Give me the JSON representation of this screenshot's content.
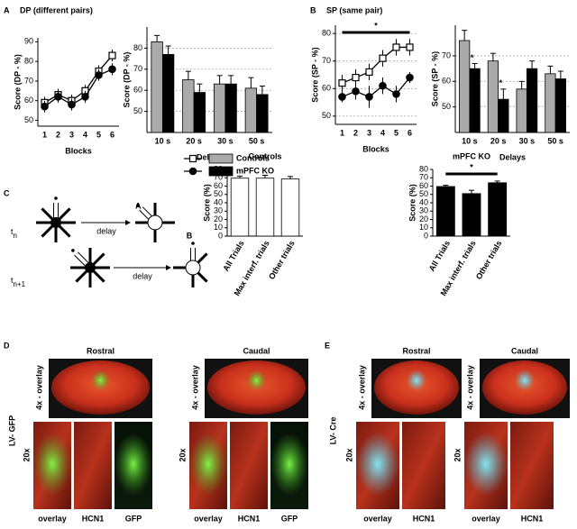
{
  "panel_labels": [
    "A",
    "B",
    "C",
    "D",
    "E"
  ],
  "panel_titles": [
    "DP (different pairs)",
    "SP (same pair)"
  ],
  "chart_data": [
    {
      "type": "line",
      "x_label": "Blocks",
      "y_label": "Score (DP - %)",
      "categories": [
        "1",
        "2",
        "3",
        "4",
        "5",
        "6"
      ],
      "ylim": [
        47,
        92
      ],
      "yticks": [
        50,
        60,
        70,
        80,
        90
      ],
      "grid": false,
      "series": [
        {
          "name": "Controls",
          "color": "#ffffff",
          "marker": "square",
          "values": [
            59,
            63,
            60,
            65,
            75,
            83
          ],
          "errors": [
            3,
            3,
            3,
            3,
            3,
            3
          ]
        },
        {
          "name": "mPFC KO",
          "color": "#000000",
          "marker": "circle",
          "values": [
            57,
            62,
            58,
            62,
            73,
            76
          ],
          "errors": [
            3,
            3,
            3,
            3,
            3,
            3
          ]
        }
      ]
    },
    {
      "type": "bar",
      "x_label": "Delays",
      "y_label": "Score (DP - %)",
      "categories": [
        "10 s",
        "20 s",
        "30 s",
        "50 s"
      ],
      "ylim": [
        40,
        90
      ],
      "yticks": [
        50,
        60,
        70,
        80
      ],
      "grid": true,
      "series": [
        {
          "name": "Controls",
          "color": "#aaaaaa",
          "values": [
            83,
            65,
            63,
            61
          ],
          "errors": [
            3,
            4,
            4,
            5
          ]
        },
        {
          "name": "mPFC KO",
          "color": "#000000",
          "values": [
            77,
            59,
            63,
            58
          ],
          "errors": [
            4,
            4,
            4,
            4
          ]
        }
      ]
    },
    {
      "type": "line",
      "x_label": "Blocks",
      "y_label": "Score (SP - %)",
      "categories": [
        "1",
        "2",
        "3",
        "4",
        "5",
        "6"
      ],
      "ylim": [
        47,
        83
      ],
      "yticks": [
        50,
        60,
        70,
        80
      ],
      "grid": true,
      "annotations": [
        {
          "text": "*"
        }
      ],
      "series": [
        {
          "name": "Controls",
          "color": "#ffffff",
          "marker": "square",
          "values": [
            62,
            64,
            66,
            71,
            75,
            75
          ],
          "errors": [
            3,
            3,
            3,
            3,
            3,
            3
          ]
        },
        {
          "name": "mPFC KO",
          "color": "#000000",
          "marker": "circle",
          "values": [
            57,
            59,
            57,
            61,
            58,
            64
          ],
          "errors": [
            2,
            3,
            4,
            3,
            3,
            2
          ]
        }
      ]
    },
    {
      "type": "bar",
      "x_label": "Delays",
      "y_label": "Score (SP - %)",
      "categories": [
        "10 s",
        "20 s",
        "30 s",
        "50 s"
      ],
      "ylim": [
        40,
        82
      ],
      "yticks": [
        50,
        60,
        70
      ],
      "grid": true,
      "annotations": [
        {
          "text": "*"
        },
        {
          "text": "*"
        }
      ],
      "series": [
        {
          "name": "Controls",
          "color": "#aaaaaa",
          "values": [
            76,
            68,
            57,
            63
          ],
          "errors": [
            4,
            3,
            3,
            3
          ]
        },
        {
          "name": "mPFC KO",
          "color": "#000000",
          "values": [
            65,
            53,
            65,
            61
          ],
          "errors": [
            2,
            4,
            3,
            3
          ]
        }
      ]
    },
    {
      "type": "bar",
      "title": "Controls",
      "y_label": "Score (%)",
      "categories": [
        "All Trials",
        "Max interf. trials",
        "Other trials"
      ],
      "ylim": [
        0,
        80
      ],
      "yticks": [
        0,
        10,
        20,
        30,
        40,
        50,
        60,
        70,
        80
      ],
      "grid": false,
      "color": "#ffffff",
      "values": [
        69.5,
        69.5,
        68.5
      ],
      "errors": [
        2.5,
        3.5,
        3
      ]
    },
    {
      "type": "bar",
      "title": "mPFC KO",
      "y_label": "Score (%)",
      "categories": [
        "All Trials",
        "Max interf. trials",
        "Other trials"
      ],
      "ylim": [
        0,
        80
      ],
      "yticks": [
        0,
        10,
        20,
        30,
        40,
        50,
        60,
        70,
        80
      ],
      "grid": false,
      "annotations": [
        {
          "text": "*"
        }
      ],
      "color": "#000000",
      "values": [
        59.5,
        51,
        64
      ],
      "errors": [
        1.5,
        4,
        2
      ]
    }
  ],
  "diagram": {
    "rows": [
      {
        "time": "t",
        "index": "n",
        "delay": "delay",
        "arm": "A"
      },
      {
        "time": "t",
        "index": "n+1",
        "delay": "delay",
        "arm": "B"
      }
    ]
  },
  "histology": [
    {
      "construct": "LV- GFP",
      "sections": [
        {
          "title": "Rostral",
          "low_label": "4x - overlay",
          "high_label": "20x",
          "channels": [
            "overlay",
            "HCN1",
            "GFP"
          ]
        },
        {
          "title": "Caudal",
          "low_label": "4x - overlay",
          "high_label": "20x",
          "channels": [
            "overlay",
            "HCN1",
            "GFP"
          ]
        }
      ]
    },
    {
      "construct": "LV- Cre",
      "sections": [
        {
          "title": "Rostral",
          "low_label": "4x - overlay",
          "high_label": "20x",
          "channels": [
            "overlay",
            "HCN1"
          ]
        },
        {
          "title": "Caudal",
          "low_label": "4x - overlay",
          "high_label": "20x",
          "channels": [
            "overlay",
            "HCN1"
          ]
        }
      ]
    }
  ]
}
